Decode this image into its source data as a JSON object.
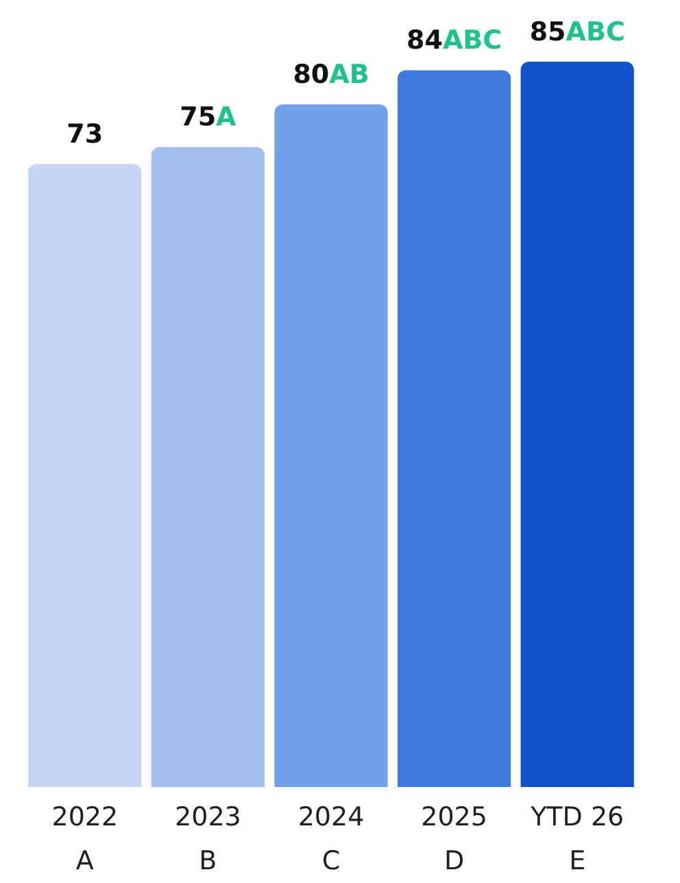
{
  "chart_data": {
    "type": "bar",
    "categories": [
      "2022\nA",
      "2023\nB",
      "2024\nC",
      "2025\nD",
      "YTD 26\nE"
    ],
    "values": [
      73,
      75,
      80,
      84,
      85
    ],
    "colors": [
      "#c5d6f4",
      "#a2bff0",
      "#72a0e9",
      "#3f7bdc",
      "#1252cb"
    ],
    "value_labels": [
      "73",
      "75A",
      "80AB",
      "84ABC",
      "85ABC"
    ],
    "grid": false
  }
}
